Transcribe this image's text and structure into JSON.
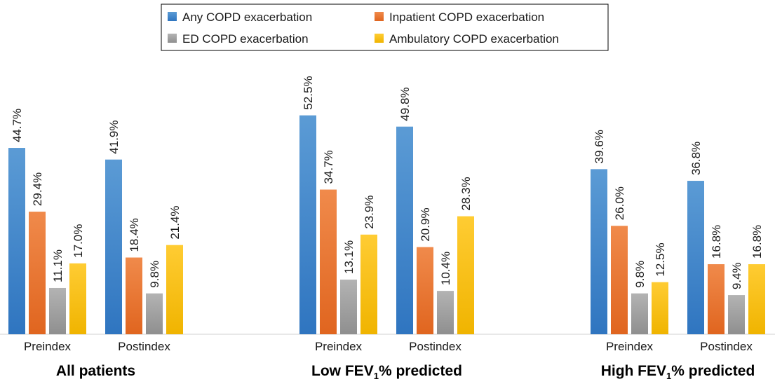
{
  "chart_data": {
    "type": "bar",
    "unit": "%",
    "ylim": [
      0,
      60
    ],
    "grid": false,
    "legend_position": "top-center",
    "series": [
      {
        "name": "Any COPD exacerbation",
        "color": "#4a90d9",
        "key": "any"
      },
      {
        "name": "Inpatient COPD exacerbation",
        "color": "#ed7d31",
        "key": "inpatient"
      },
      {
        "name": "ED COPD exacerbation",
        "color": "#a5a5a5",
        "key": "ed"
      },
      {
        "name": "Ambulatory COPD exacerbation",
        "color": "#ffc000",
        "key": "ambulatory"
      }
    ],
    "groups": [
      {
        "label_main": "All patients",
        "label_sub": "",
        "label_suffix": "",
        "categories": [
          {
            "name": "Preindex",
            "values": [
              44.7,
              29.4,
              11.1,
              17.0
            ],
            "labels": [
              "44.7%",
              "29.4%",
              "11.1%",
              "17.0%"
            ]
          },
          {
            "name": "Postindex",
            "values": [
              41.9,
              18.4,
              9.8,
              21.4
            ],
            "labels": [
              "41.9%",
              "18.4%",
              "9.8%",
              "21.4%"
            ]
          }
        ]
      },
      {
        "label_main": "Low FEV",
        "label_sub": "1",
        "label_suffix": "% predicted",
        "categories": [
          {
            "name": "Preindex",
            "values": [
              52.5,
              34.7,
              13.1,
              23.9
            ],
            "labels": [
              "52.5%",
              "34.7%",
              "13.1%",
              "23.9%"
            ]
          },
          {
            "name": "Postindex",
            "values": [
              49.8,
              20.9,
              10.4,
              28.3
            ],
            "labels": [
              "49.8%",
              "20.9%",
              "10.4%",
              "28.3%"
            ]
          }
        ]
      },
      {
        "label_main": "High FEV",
        "label_sub": "1",
        "label_suffix": "% predicted",
        "categories": [
          {
            "name": "Preindex",
            "values": [
              39.6,
              26.0,
              9.8,
              12.5
            ],
            "labels": [
              "39.6%",
              "26.0%",
              "9.8%",
              "12.5%"
            ]
          },
          {
            "name": "Postindex",
            "values": [
              36.8,
              16.8,
              9.4,
              16.8
            ],
            "labels": [
              "36.8%",
              "16.8%",
              "9.4%",
              "16.8%"
            ]
          }
        ]
      }
    ]
  }
}
